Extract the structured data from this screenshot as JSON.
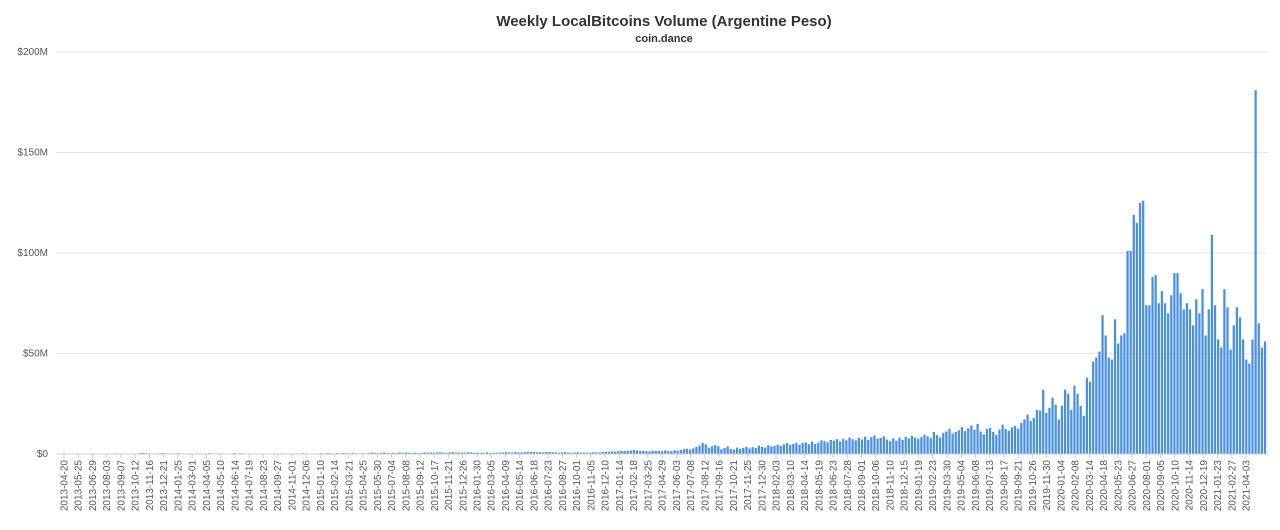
{
  "chart_data": {
    "type": "bar",
    "title": "Weekly LocalBitcoins Volume (Argentine Peso)",
    "subtitle": "coin.dance",
    "series_color": "#4a90e2",
    "ylim": [
      0,
      200
    ],
    "y_unit": "millions ARS",
    "y_ticks": [
      {
        "value": 0,
        "label": "$0"
      },
      {
        "value": 50,
        "label": "$50M"
      },
      {
        "value": 100,
        "label": "$100M"
      },
      {
        "value": 150,
        "label": "$150M"
      },
      {
        "value": 200,
        "label": "$200M"
      }
    ],
    "x_labels": [
      "2013-04-20",
      "2013-05-25",
      "2013-06-29",
      "2013-08-03",
      "2013-09-07",
      "2013-10-12",
      "2013-11-16",
      "2013-12-21",
      "2014-01-25",
      "2014-03-01",
      "2014-04-05",
      "2014-05-10",
      "2014-06-14",
      "2014-07-19",
      "2014-08-23",
      "2014-09-27",
      "2014-11-01",
      "2014-12-06",
      "2015-01-10",
      "2015-02-14",
      "2015-03-21",
      "2015-04-25",
      "2015-05-30",
      "2015-07-04",
      "2015-08-08",
      "2015-09-12",
      "2015-10-17",
      "2015-11-21",
      "2015-12-26",
      "2016-01-30",
      "2016-03-05",
      "2016-04-09",
      "2016-05-14",
      "2016-06-18",
      "2016-07-23",
      "2016-08-27",
      "2016-10-01",
      "2016-11-05",
      "2016-12-10",
      "2017-01-14",
      "2017-02-18",
      "2017-03-25",
      "2017-04-29",
      "2017-06-03",
      "2017-07-08",
      "2017-08-12",
      "2017-09-16",
      "2017-10-21",
      "2017-11-25",
      "2017-12-30",
      "2018-02-03",
      "2018-03-10",
      "2018-04-14",
      "2018-05-19",
      "2018-06-23",
      "2018-07-28",
      "2018-09-01",
      "2018-10-06",
      "2018-11-10",
      "2018-12-15",
      "2019-01-19",
      "2019-02-23",
      "2019-03-30",
      "2019-05-04",
      "2019-06-08",
      "2019-07-13",
      "2019-08-17",
      "2019-09-21",
      "2019-10-26",
      "2019-11-30",
      "2020-01-04",
      "2020-02-08",
      "2020-03-14",
      "2020-04-18",
      "2020-05-23",
      "2020-06-27",
      "2020-08-01",
      "2020-09-05",
      "2020-10-10",
      "2020-11-14",
      "2020-12-19",
      "2021-01-23",
      "2021-02-27",
      "2021-04-03"
    ],
    "values": [
      0.0,
      0.0,
      0.0,
      0.0,
      0.0,
      0.1,
      0.0,
      0.2,
      0.0,
      0.1,
      0.2,
      0.0,
      0.1,
      0.1,
      0.2,
      0.1,
      0.2,
      0.1,
      0.3,
      0.1,
      0.2,
      0.1,
      0.0,
      0.2,
      0.2,
      0.2,
      0.5,
      0.5,
      0.4,
      0.3,
      0.2,
      0.2,
      0.3,
      0.5,
      0.4,
      0.3,
      0.2,
      0.3,
      0.4,
      0.3,
      0.1,
      0.2,
      0.3,
      0.2,
      0.3,
      0.3,
      0.2,
      0.1,
      0.4,
      0.2,
      0.2,
      0.3,
      0.3,
      0.2,
      0.2,
      0.1,
      0.5,
      0.2,
      0.4,
      0.2,
      0.1,
      0.3,
      0.2,
      0.2,
      0.1,
      0.2,
      0.2,
      0.2,
      0.1,
      0.3,
      0.2,
      0.3,
      0.2,
      0.1,
      0.3,
      0.2,
      0.3,
      0.2,
      0.4,
      0.3,
      0.2,
      0.2,
      0.2,
      0.3,
      0.4,
      0.3,
      0.5,
      0.4,
      0.3,
      0.5,
      0.3,
      0.5,
      0.4,
      0.3,
      0.6,
      0.4,
      0.3,
      0.4,
      0.3,
      0.5,
      0.7,
      0.6,
      0.4,
      0.6,
      0.8,
      0.5,
      0.4,
      0.6,
      0.5,
      0.8,
      0.6,
      0.7,
      0.6,
      0.5,
      0.7,
      0.5,
      0.6,
      0.8,
      0.7,
      0.7,
      0.6,
      0.8,
      0.9,
      0.7,
      0.6,
      0.8,
      0.9,
      0.7,
      0.8,
      0.7,
      0.7,
      0.9,
      0.8,
      0.6,
      0.7,
      0.6,
      0.6,
      0.8,
      0.5,
      0.6,
      0.7,
      0.7,
      0.8,
      0.9,
      0.8,
      0.7,
      1.0,
      0.9,
      0.8,
      0.9,
      1.1,
      1.0,
      1.0,
      0.9,
      1.0,
      0.8,
      1.0,
      1.0,
      0.9,
      0.8,
      0.7,
      0.8,
      1.0,
      0.7,
      0.6,
      0.8,
      0.9,
      0.7,
      0.8,
      0.6,
      0.7,
      0.9,
      0.8,
      0.8,
      1.0,
      1.2,
      1.1,
      1.3,
      1.2,
      1.4,
      1.6,
      1.5,
      1.6,
      1.7,
      2.0,
      1.8,
      1.5,
      1.6,
      1.4,
      1.3,
      1.7,
      1.5,
      1.6,
      1.4,
      1.8,
      1.6,
      1.4,
      1.9,
      1.7,
      2.0,
      2.4,
      2.6,
      2.2,
      2.8,
      3.5,
      4.2,
      5.5,
      4.8,
      3.2,
      3.8,
      4.5,
      3.9,
      2.4,
      3.0,
      3.8,
      2.5,
      2.2,
      3.2,
      2.6,
      3.0,
      3.6,
      2.8,
      3.4,
      3.0,
      4.2,
      3.6,
      3.2,
      4.4,
      3.8,
      4.0,
      4.6,
      4.0,
      4.8,
      5.4,
      4.5,
      5.0,
      5.6,
      4.6,
      5.4,
      5.8,
      4.8,
      6.2,
      5.0,
      5.6,
      6.8,
      6.4,
      5.8,
      7.0,
      6.6,
      7.4,
      6.2,
      7.6,
      6.8,
      8.2,
      7.4,
      6.8,
      8.0,
      7.2,
      8.6,
      7.0,
      8.4,
      9.2,
      7.6,
      8.0,
      8.8,
      7.2,
      6.4,
      7.8,
      6.6,
      8.2,
      7.0,
      8.6,
      7.8,
      9.0,
      8.2,
      7.6,
      8.4,
      9.6,
      8.8,
      8.0,
      11.0,
      9.4,
      8.2,
      10.4,
      11.2,
      12.6,
      10.2,
      11.0,
      11.8,
      13.4,
      11.4,
      12.8,
      14.2,
      12.0,
      15.0,
      11.2,
      9.8,
      12.4,
      13.0,
      11.0,
      9.4,
      12.2,
      14.6,
      12.4,
      11.6,
      13.2,
      14.0,
      12.6,
      15.6,
      17.2,
      19.6,
      16.4,
      18.0,
      22.0,
      21.6,
      32.0,
      20.4,
      23.0,
      28.0,
      24.6,
      17.2,
      24.0,
      32.0,
      30.0,
      22.0,
      34.0,
      30.0,
      24.0,
      19.0,
      38.0,
      36.0,
      46.0,
      48.0,
      51.0,
      69.0,
      59.0,
      48.0,
      47.0,
      67.0,
      55.0,
      59.0,
      60.0,
      101.0,
      101.0,
      119.0,
      115.0,
      125.0,
      126.0,
      74.0,
      74.0,
      88.0,
      89.0,
      75.0,
      81.0,
      75.0,
      70.0,
      79.0,
      90.0,
      90.0,
      80.0,
      72.0,
      75.0,
      72.0,
      64.0,
      77.0,
      70.0,
      82.0,
      59.0,
      72.0,
      109.0,
      74.0,
      57.0,
      53.0,
      82.0,
      73.0,
      52.0,
      64.0,
      73.0,
      68.0,
      57.0,
      47.0,
      45.0,
      57.0,
      181.0,
      65.0,
      53.0,
      56.0
    ]
  }
}
